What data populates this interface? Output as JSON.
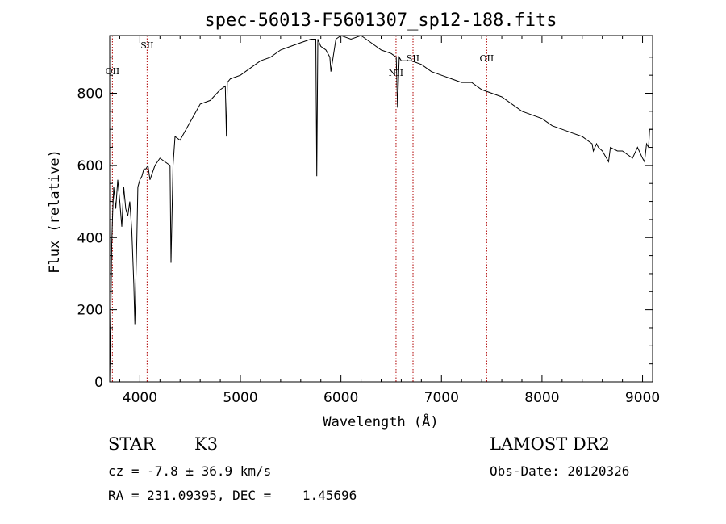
{
  "chart_data": {
    "type": "line",
    "title": "spec-56013-F5601307_sp12-188.fits",
    "xlabel": "Wavelength (Å)",
    "ylabel": "Flux (relative)",
    "xlim": [
      3700,
      9100
    ],
    "ylim": [
      0,
      960
    ],
    "x_ticks": [
      4000,
      5000,
      6000,
      7000,
      8000,
      9000
    ],
    "y_ticks": [
      0,
      200,
      400,
      600,
      800
    ],
    "grid": false,
    "series": [
      {
        "x": [
          3700,
          3710,
          3720,
          3730,
          3740,
          3760,
          3780,
          3800,
          3820,
          3840,
          3860,
          3880,
          3900,
          3920,
          3940,
          3950,
          3960,
          3970,
          3980,
          4000,
          4020,
          4040,
          4060,
          4080,
          4100,
          4150,
          4200,
          4250,
          4300,
          4310,
          4330,
          4350,
          4400,
          4500,
          4600,
          4700,
          4800,
          4850,
          4861,
          4870,
          4900,
          5000,
          5100,
          5200,
          5300,
          5400,
          5500,
          5600,
          5700,
          5750,
          5760,
          5770,
          5800,
          5850,
          5890,
          5900,
          5950,
          6000,
          6100,
          6200,
          6300,
          6400,
          6500,
          6550,
          6563,
          6580,
          6600,
          6700,
          6800,
          6900,
          7000,
          7100,
          7200,
          7300,
          7400,
          7500,
          7600,
          7700,
          7800,
          7900,
          8000,
          8100,
          8200,
          8300,
          8400,
          8498,
          8510,
          8542,
          8560,
          8600,
          8662,
          8680,
          8750,
          8800,
          8900,
          8950,
          9000,
          9020,
          9040,
          9060,
          9070,
          9080,
          9100
        ],
        "y": [
          0,
          160,
          380,
          470,
          540,
          480,
          560,
          500,
          430,
          540,
          480,
          460,
          500,
          420,
          270,
          160,
          280,
          400,
          540,
          560,
          570,
          590,
          590,
          600,
          560,
          600,
          620,
          610,
          600,
          330,
          600,
          680,
          670,
          720,
          770,
          780,
          810,
          820,
          680,
          830,
          840,
          850,
          870,
          890,
          900,
          920,
          930,
          940,
          950,
          950,
          570,
          950,
          930,
          920,
          900,
          860,
          950,
          960,
          950,
          960,
          940,
          920,
          910,
          900,
          760,
          900,
          890,
          890,
          880,
          860,
          850,
          840,
          830,
          830,
          810,
          800,
          790,
          770,
          750,
          740,
          730,
          710,
          700,
          690,
          680,
          660,
          640,
          660,
          650,
          640,
          610,
          650,
          640,
          640,
          620,
          650,
          620,
          610,
          660,
          650,
          700,
          700,
          700
        ]
      }
    ],
    "line_markers": [
      {
        "label": "OII",
        "x": 3727
      },
      {
        "label": "SII",
        "x": 4072
      },
      {
        "label": "NII",
        "x": 6548
      },
      {
        "label": "SII",
        "x": 6717
      },
      {
        "label": "OII",
        "x": 7450
      }
    ]
  },
  "info": {
    "object_class": "STAR",
    "subclass": "K3",
    "survey": "LAMOST DR2",
    "redshift": "cz = -7.8 ± 36.9 km/s",
    "obs_date": "Obs-Date: 20120326",
    "coords": "RA = 231.09395, DEC =    1.45696"
  },
  "colors": {
    "line_marker": "#b00000",
    "spectrum": "#000000"
  }
}
